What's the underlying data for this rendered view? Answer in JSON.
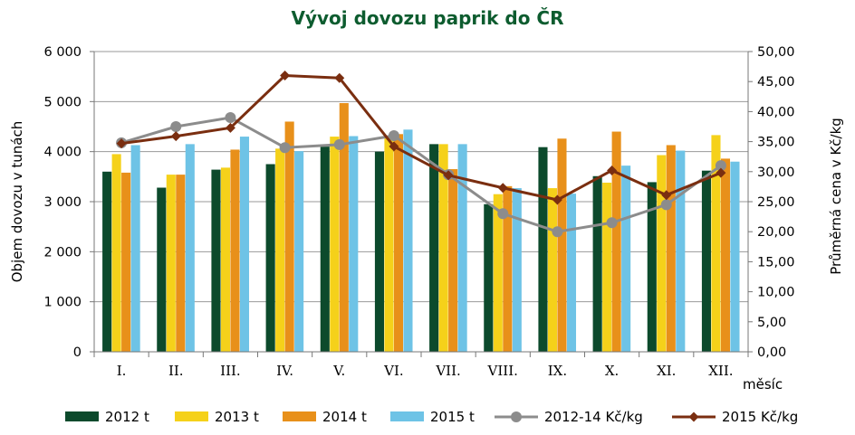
{
  "chart_data": {
    "type": "bar",
    "title": "Vývoj dovozu paprik do ČR",
    "xlabel": "měsíc",
    "ylabel": "Objem dovozu v tunách",
    "y2label": "Průměrná cena v Kč/kg",
    "categories": [
      "I.",
      "II.",
      "III.",
      "IV.",
      "V.",
      "VI.",
      "VII.",
      "VIII.",
      "IX.",
      "X.",
      "XI.",
      "XII."
    ],
    "ylim": [
      0,
      6000
    ],
    "y2lim": [
      0,
      50
    ],
    "yticks": [
      "0",
      "1 000",
      "2 000",
      "3 000",
      "4 000",
      "5 000",
      "6 000"
    ],
    "y2ticks": [
      "0,00",
      "5,00",
      "10,00",
      "15,00",
      "20,00",
      "25,00",
      "30,00",
      "35,00",
      "40,00",
      "45,00",
      "50,00"
    ],
    "grid": true,
    "legend_position": "bottom",
    "series": [
      {
        "name": "2012 t",
        "kind": "bar",
        "axis": "left",
        "color": "#0c4a2c",
        "values": [
          3600,
          3280,
          3640,
          3750,
          4100,
          4000,
          4150,
          2950,
          4090,
          3510,
          3390,
          3620
        ]
      },
      {
        "name": "2013 t",
        "kind": "bar",
        "axis": "left",
        "color": "#f5d11a",
        "values": [
          3950,
          3540,
          3680,
          4060,
          4300,
          4270,
          4150,
          3150,
          3270,
          3380,
          3930,
          4330
        ]
      },
      {
        "name": "2014 t",
        "kind": "bar",
        "axis": "left",
        "color": "#e8901a",
        "values": [
          3580,
          3540,
          4040,
          4600,
          4970,
          4350,
          3650,
          3310,
          4260,
          4400,
          4130,
          3860
        ]
      },
      {
        "name": "2015 t",
        "kind": "bar",
        "axis": "left",
        "color": "#6ec3e6",
        "values": [
          4130,
          4150,
          4300,
          4010,
          4310,
          4440,
          4150,
          3270,
          3160,
          3720,
          4020,
          3800
        ]
      },
      {
        "name": "2012-14 Kč/kg",
        "kind": "line",
        "axis": "right",
        "color": "#8c8c8c",
        "marker": "circle",
        "values": [
          34.8,
          37.5,
          39.0,
          34.0,
          34.5,
          36.0,
          29.5,
          23.0,
          20.0,
          21.5,
          24.5,
          31.0
        ]
      },
      {
        "name": "2015 Kč/kg",
        "kind": "line",
        "axis": "right",
        "color": "#7a2e10",
        "marker": "diamond",
        "values": [
          34.7,
          35.9,
          37.3,
          46.0,
          45.6,
          34.2,
          29.4,
          27.3,
          25.3,
          30.2,
          26.1,
          29.8
        ]
      }
    ]
  }
}
